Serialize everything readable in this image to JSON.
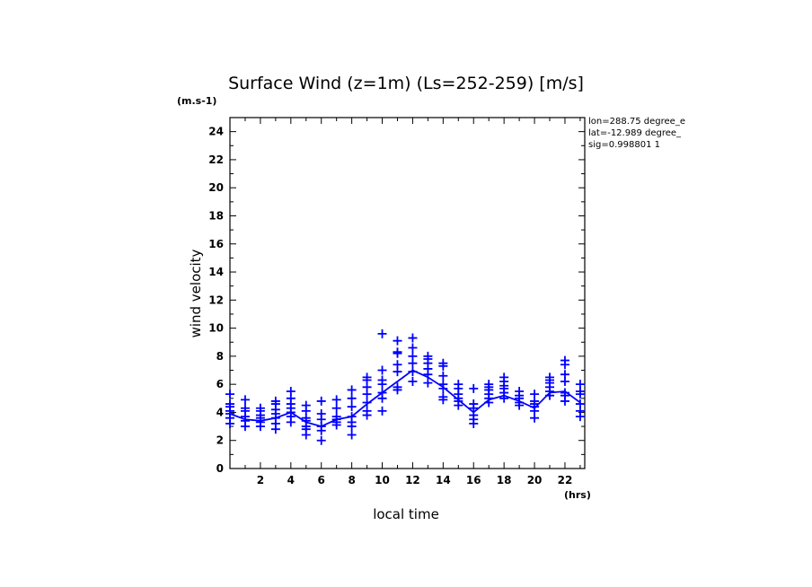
{
  "chart_data": {
    "type": "scatter",
    "title": "Surface Wind (z=1m) (Ls=252-259) [m/s]",
    "xlabel": "local time",
    "ylabel": "wind velocity",
    "x_unit": "(hrs)",
    "y_unit": "(m.s-1)",
    "xlim": [
      0,
      23.3
    ],
    "ylim": [
      0,
      25
    ],
    "x_ticks": [
      2,
      4,
      6,
      8,
      10,
      12,
      14,
      16,
      18,
      20,
      22
    ],
    "y_ticks": [
      0,
      2,
      4,
      6,
      8,
      10,
      12,
      14,
      16,
      18,
      20,
      22,
      24
    ],
    "info_lines": [
      "lon=288.75 degree_e",
      "lat=-12.989 degree_",
      "sig=0.998801 1"
    ],
    "color": "#0000ff",
    "series": [
      {
        "kind": "line",
        "x": [
          0,
          1,
          2,
          3,
          4,
          5,
          6,
          7,
          8,
          9,
          10,
          11,
          12,
          13,
          14,
          15,
          16,
          17,
          18,
          19,
          20,
          21,
          22,
          23
        ],
        "y": [
          3.9,
          3.5,
          3.4,
          3.6,
          4.0,
          3.3,
          3.0,
          3.5,
          3.7,
          4.6,
          5.4,
          6.2,
          7.0,
          6.5,
          5.8,
          4.9,
          4.0,
          4.9,
          5.2,
          4.8,
          4.3,
          5.4,
          5.5,
          4.7
        ]
      },
      {
        "kind": "markers",
        "points": [
          [
            0,
            3.2
          ],
          [
            0,
            3.6
          ],
          [
            0,
            3.9
          ],
          [
            0,
            4.1
          ],
          [
            0,
            4.4
          ],
          [
            0,
            4.6
          ],
          [
            0,
            5.3
          ],
          [
            1,
            3.0
          ],
          [
            1,
            3.4
          ],
          [
            1,
            3.7
          ],
          [
            1,
            4.1
          ],
          [
            1,
            4.3
          ],
          [
            1,
            4.9
          ],
          [
            2,
            3.0
          ],
          [
            2,
            3.3
          ],
          [
            2,
            3.6
          ],
          [
            2,
            3.8
          ],
          [
            2,
            4.1
          ],
          [
            2,
            4.3
          ],
          [
            3,
            2.8
          ],
          [
            3,
            3.2
          ],
          [
            3,
            3.6
          ],
          [
            3,
            3.9
          ],
          [
            3,
            4.2
          ],
          [
            3,
            4.6
          ],
          [
            3,
            4.8
          ],
          [
            4,
            3.3
          ],
          [
            4,
            3.7
          ],
          [
            4,
            4.0
          ],
          [
            4,
            4.3
          ],
          [
            4,
            4.6
          ],
          [
            4,
            5.0
          ],
          [
            4,
            5.5
          ],
          [
            5,
            2.4
          ],
          [
            5,
            2.8
          ],
          [
            5,
            3.0
          ],
          [
            5,
            3.4
          ],
          [
            5,
            3.6
          ],
          [
            5,
            4.1
          ],
          [
            5,
            4.5
          ],
          [
            6,
            2.0
          ],
          [
            6,
            2.7
          ],
          [
            6,
            3.0
          ],
          [
            6,
            3.5
          ],
          [
            6,
            3.9
          ],
          [
            6,
            4.8
          ],
          [
            7,
            3.1
          ],
          [
            7,
            3.3
          ],
          [
            7,
            3.5
          ],
          [
            7,
            3.7
          ],
          [
            7,
            4.3
          ],
          [
            7,
            4.9
          ],
          [
            8,
            2.4
          ],
          [
            8,
            3.0
          ],
          [
            8,
            3.3
          ],
          [
            8,
            3.7
          ],
          [
            8,
            4.4
          ],
          [
            8,
            5.0
          ],
          [
            8,
            5.6
          ],
          [
            9,
            3.8
          ],
          [
            9,
            4.1
          ],
          [
            9,
            4.7
          ],
          [
            9,
            5.3
          ],
          [
            9,
            5.8
          ],
          [
            9,
            6.3
          ],
          [
            9,
            6.5
          ],
          [
            10,
            4.1
          ],
          [
            10,
            5.0
          ],
          [
            10,
            5.4
          ],
          [
            10,
            6.0
          ],
          [
            10,
            6.3
          ],
          [
            10,
            7.0
          ],
          [
            10,
            9.6
          ],
          [
            11,
            5.6
          ],
          [
            11,
            5.8
          ],
          [
            11,
            6.9
          ],
          [
            11,
            7.4
          ],
          [
            11,
            8.2
          ],
          [
            11,
            8.3
          ],
          [
            11,
            9.1
          ],
          [
            12,
            6.2
          ],
          [
            12,
            6.9
          ],
          [
            12,
            7.5
          ],
          [
            12,
            8.0
          ],
          [
            12,
            8.6
          ],
          [
            12,
            9.3
          ],
          [
            13,
            6.1
          ],
          [
            13,
            6.7
          ],
          [
            13,
            7.1
          ],
          [
            13,
            7.5
          ],
          [
            13,
            7.8
          ],
          [
            13,
            8.0
          ],
          [
            14,
            4.9
          ],
          [
            14,
            5.1
          ],
          [
            14,
            5.7
          ],
          [
            14,
            6.0
          ],
          [
            14,
            6.6
          ],
          [
            14,
            7.3
          ],
          [
            14,
            7.5
          ],
          [
            15,
            4.5
          ],
          [
            15,
            4.8
          ],
          [
            15,
            5.0
          ],
          [
            15,
            5.3
          ],
          [
            15,
            5.7
          ],
          [
            15,
            6.0
          ],
          [
            16,
            3.2
          ],
          [
            16,
            3.5
          ],
          [
            16,
            3.8
          ],
          [
            16,
            4.3
          ],
          [
            16,
            4.6
          ],
          [
            16,
            5.7
          ],
          [
            17,
            4.7
          ],
          [
            17,
            5.0
          ],
          [
            17,
            5.3
          ],
          [
            17,
            5.6
          ],
          [
            17,
            5.8
          ],
          [
            17,
            6.0
          ],
          [
            18,
            5.0
          ],
          [
            18,
            5.4
          ],
          [
            18,
            5.7
          ],
          [
            18,
            5.9
          ],
          [
            18,
            6.2
          ],
          [
            18,
            6.5
          ],
          [
            19,
            4.5
          ],
          [
            19,
            4.7
          ],
          [
            19,
            5.0
          ],
          [
            19,
            5.2
          ],
          [
            19,
            5.5
          ],
          [
            20,
            3.6
          ],
          [
            20,
            4.1
          ],
          [
            20,
            4.4
          ],
          [
            20,
            4.6
          ],
          [
            20,
            4.8
          ],
          [
            20,
            5.3
          ],
          [
            21,
            5.2
          ],
          [
            21,
            5.5
          ],
          [
            21,
            5.8
          ],
          [
            21,
            6.1
          ],
          [
            21,
            6.3
          ],
          [
            21,
            6.5
          ],
          [
            22,
            4.8
          ],
          [
            22,
            5.2
          ],
          [
            22,
            5.4
          ],
          [
            22,
            6.2
          ],
          [
            22,
            6.7
          ],
          [
            22,
            7.4
          ],
          [
            22,
            7.7
          ],
          [
            23,
            3.7
          ],
          [
            23,
            4.1
          ],
          [
            23,
            4.6
          ],
          [
            23,
            5.3
          ],
          [
            23,
            5.5
          ],
          [
            23,
            6.0
          ]
        ]
      }
    ]
  }
}
